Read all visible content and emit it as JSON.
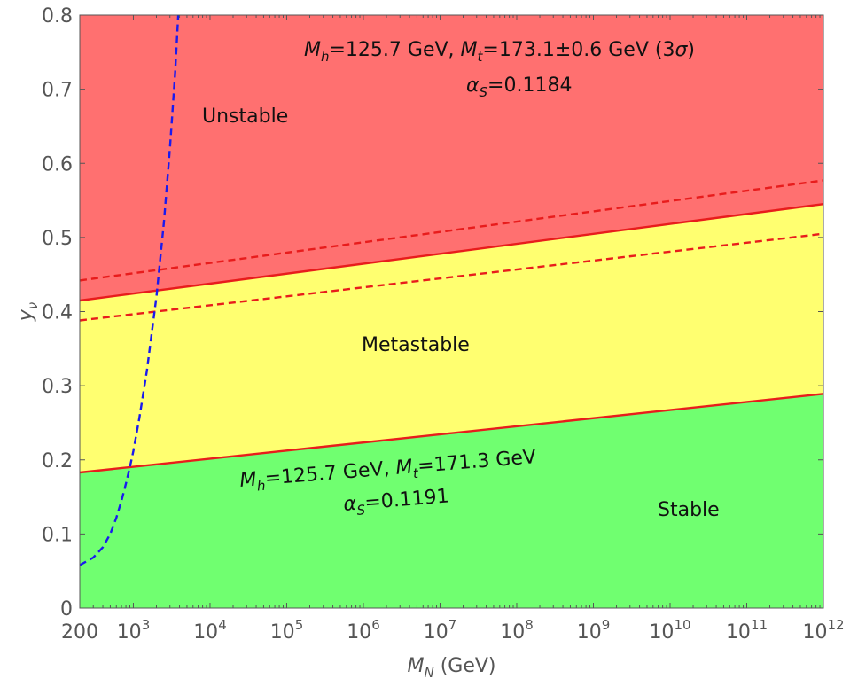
{
  "chart_data": {
    "type": "area",
    "title": "",
    "xlabel_main": "M",
    "xlabel_sub": "N",
    "xlabel_unit": " (GeV)",
    "ylabel_main": "y",
    "ylabel_sub": "ν",
    "x_scale": "log",
    "xlim": [
      200,
      1000000000000
    ],
    "ylim": [
      0,
      0.8
    ],
    "grid": false,
    "legend": "none",
    "x_ticks": [
      {
        "value": 200,
        "base": "200",
        "exp": ""
      },
      {
        "value": 1000,
        "base": "10",
        "exp": "3"
      },
      {
        "value": 10000,
        "base": "10",
        "exp": "4"
      },
      {
        "value": 100000,
        "base": "10",
        "exp": "5"
      },
      {
        "value": 1000000,
        "base": "10",
        "exp": "6"
      },
      {
        "value": 10000000,
        "base": "10",
        "exp": "7"
      },
      {
        "value": 100000000,
        "base": "10",
        "exp": "8"
      },
      {
        "value": 1000000000,
        "base": "10",
        "exp": "9"
      },
      {
        "value": 10000000000,
        "base": "10",
        "exp": "10"
      },
      {
        "value": 100000000000,
        "base": "10",
        "exp": "11"
      },
      {
        "value": 1000000000000,
        "base": "10",
        "exp": "12"
      }
    ],
    "y_ticks": [
      {
        "value": 0,
        "label": "0"
      },
      {
        "value": 0.1,
        "label": "0.1"
      },
      {
        "value": 0.2,
        "label": "0.2"
      },
      {
        "value": 0.3,
        "label": "0.3"
      },
      {
        "value": 0.4,
        "label": "0.4"
      },
      {
        "value": 0.5,
        "label": "0.5"
      },
      {
        "value": 0.6,
        "label": "0.6"
      },
      {
        "value": 0.7,
        "label": "0.7"
      },
      {
        "value": 0.8,
        "label": "0.8"
      }
    ],
    "regions": [
      {
        "label": "Unstable",
        "color": "#ff7070"
      },
      {
        "label": "Metastable",
        "color": "#ffff70"
      },
      {
        "label": "Stable",
        "color": "#70ff70"
      }
    ],
    "series": [
      {
        "style": "solid",
        "color": "#e81c1c",
        "x": [
          200,
          1000000000000
        ],
        "y": [
          0.415,
          0.545
        ]
      },
      {
        "style": "dashed",
        "color": "#e81c1c",
        "x": [
          200,
          1000000000000
        ],
        "y": [
          0.442,
          0.577
        ]
      },
      {
        "style": "dashed",
        "color": "#e81c1c",
        "x": [
          200,
          1000000000000
        ],
        "y": [
          0.388,
          0.505
        ]
      },
      {
        "style": "solid",
        "color": "#e81c1c",
        "x": [
          200,
          1000000000000
        ],
        "y": [
          0.183,
          0.289
        ]
      },
      {
        "style": "dashed",
        "color": "#1a1aee",
        "x": [
          200,
          300,
          400,
          500,
          600,
          700,
          800,
          900,
          1000,
          1200,
          1500,
          2000,
          2500,
          3000,
          3500,
          3850
        ],
        "y": [
          0.058,
          0.068,
          0.082,
          0.1,
          0.122,
          0.145,
          0.168,
          0.19,
          0.212,
          0.257,
          0.32,
          0.42,
          0.52,
          0.62,
          0.72,
          0.8
        ]
      }
    ],
    "annotations": [
      {
        "parts": [
          [
            "M",
            "italic"
          ],
          [
            "h",
            "sub"
          ],
          [
            "=125.7 GeV, ",
            "normal"
          ],
          [
            "M",
            "italic"
          ],
          [
            "t",
            "sub"
          ],
          [
            "=173.1±0.6 GeV (3",
            "normal"
          ],
          [
            "σ",
            "italic"
          ],
          [
            ")",
            "normal"
          ]
        ]
      },
      {
        "parts": [
          [
            "α",
            "italic"
          ],
          [
            "S",
            "sub"
          ],
          [
            "=0.1184",
            "normal"
          ]
        ]
      },
      {
        "parts": [
          [
            "M",
            "italic"
          ],
          [
            "h",
            "sub"
          ],
          [
            "=125.7 GeV, ",
            "normal"
          ],
          [
            "M",
            "italic"
          ],
          [
            "t",
            "sub"
          ],
          [
            "=171.3 GeV",
            "normal"
          ]
        ]
      },
      {
        "parts": [
          [
            "α",
            "italic"
          ],
          [
            "S",
            "sub"
          ],
          [
            "=0.1191",
            "normal"
          ]
        ]
      }
    ]
  }
}
